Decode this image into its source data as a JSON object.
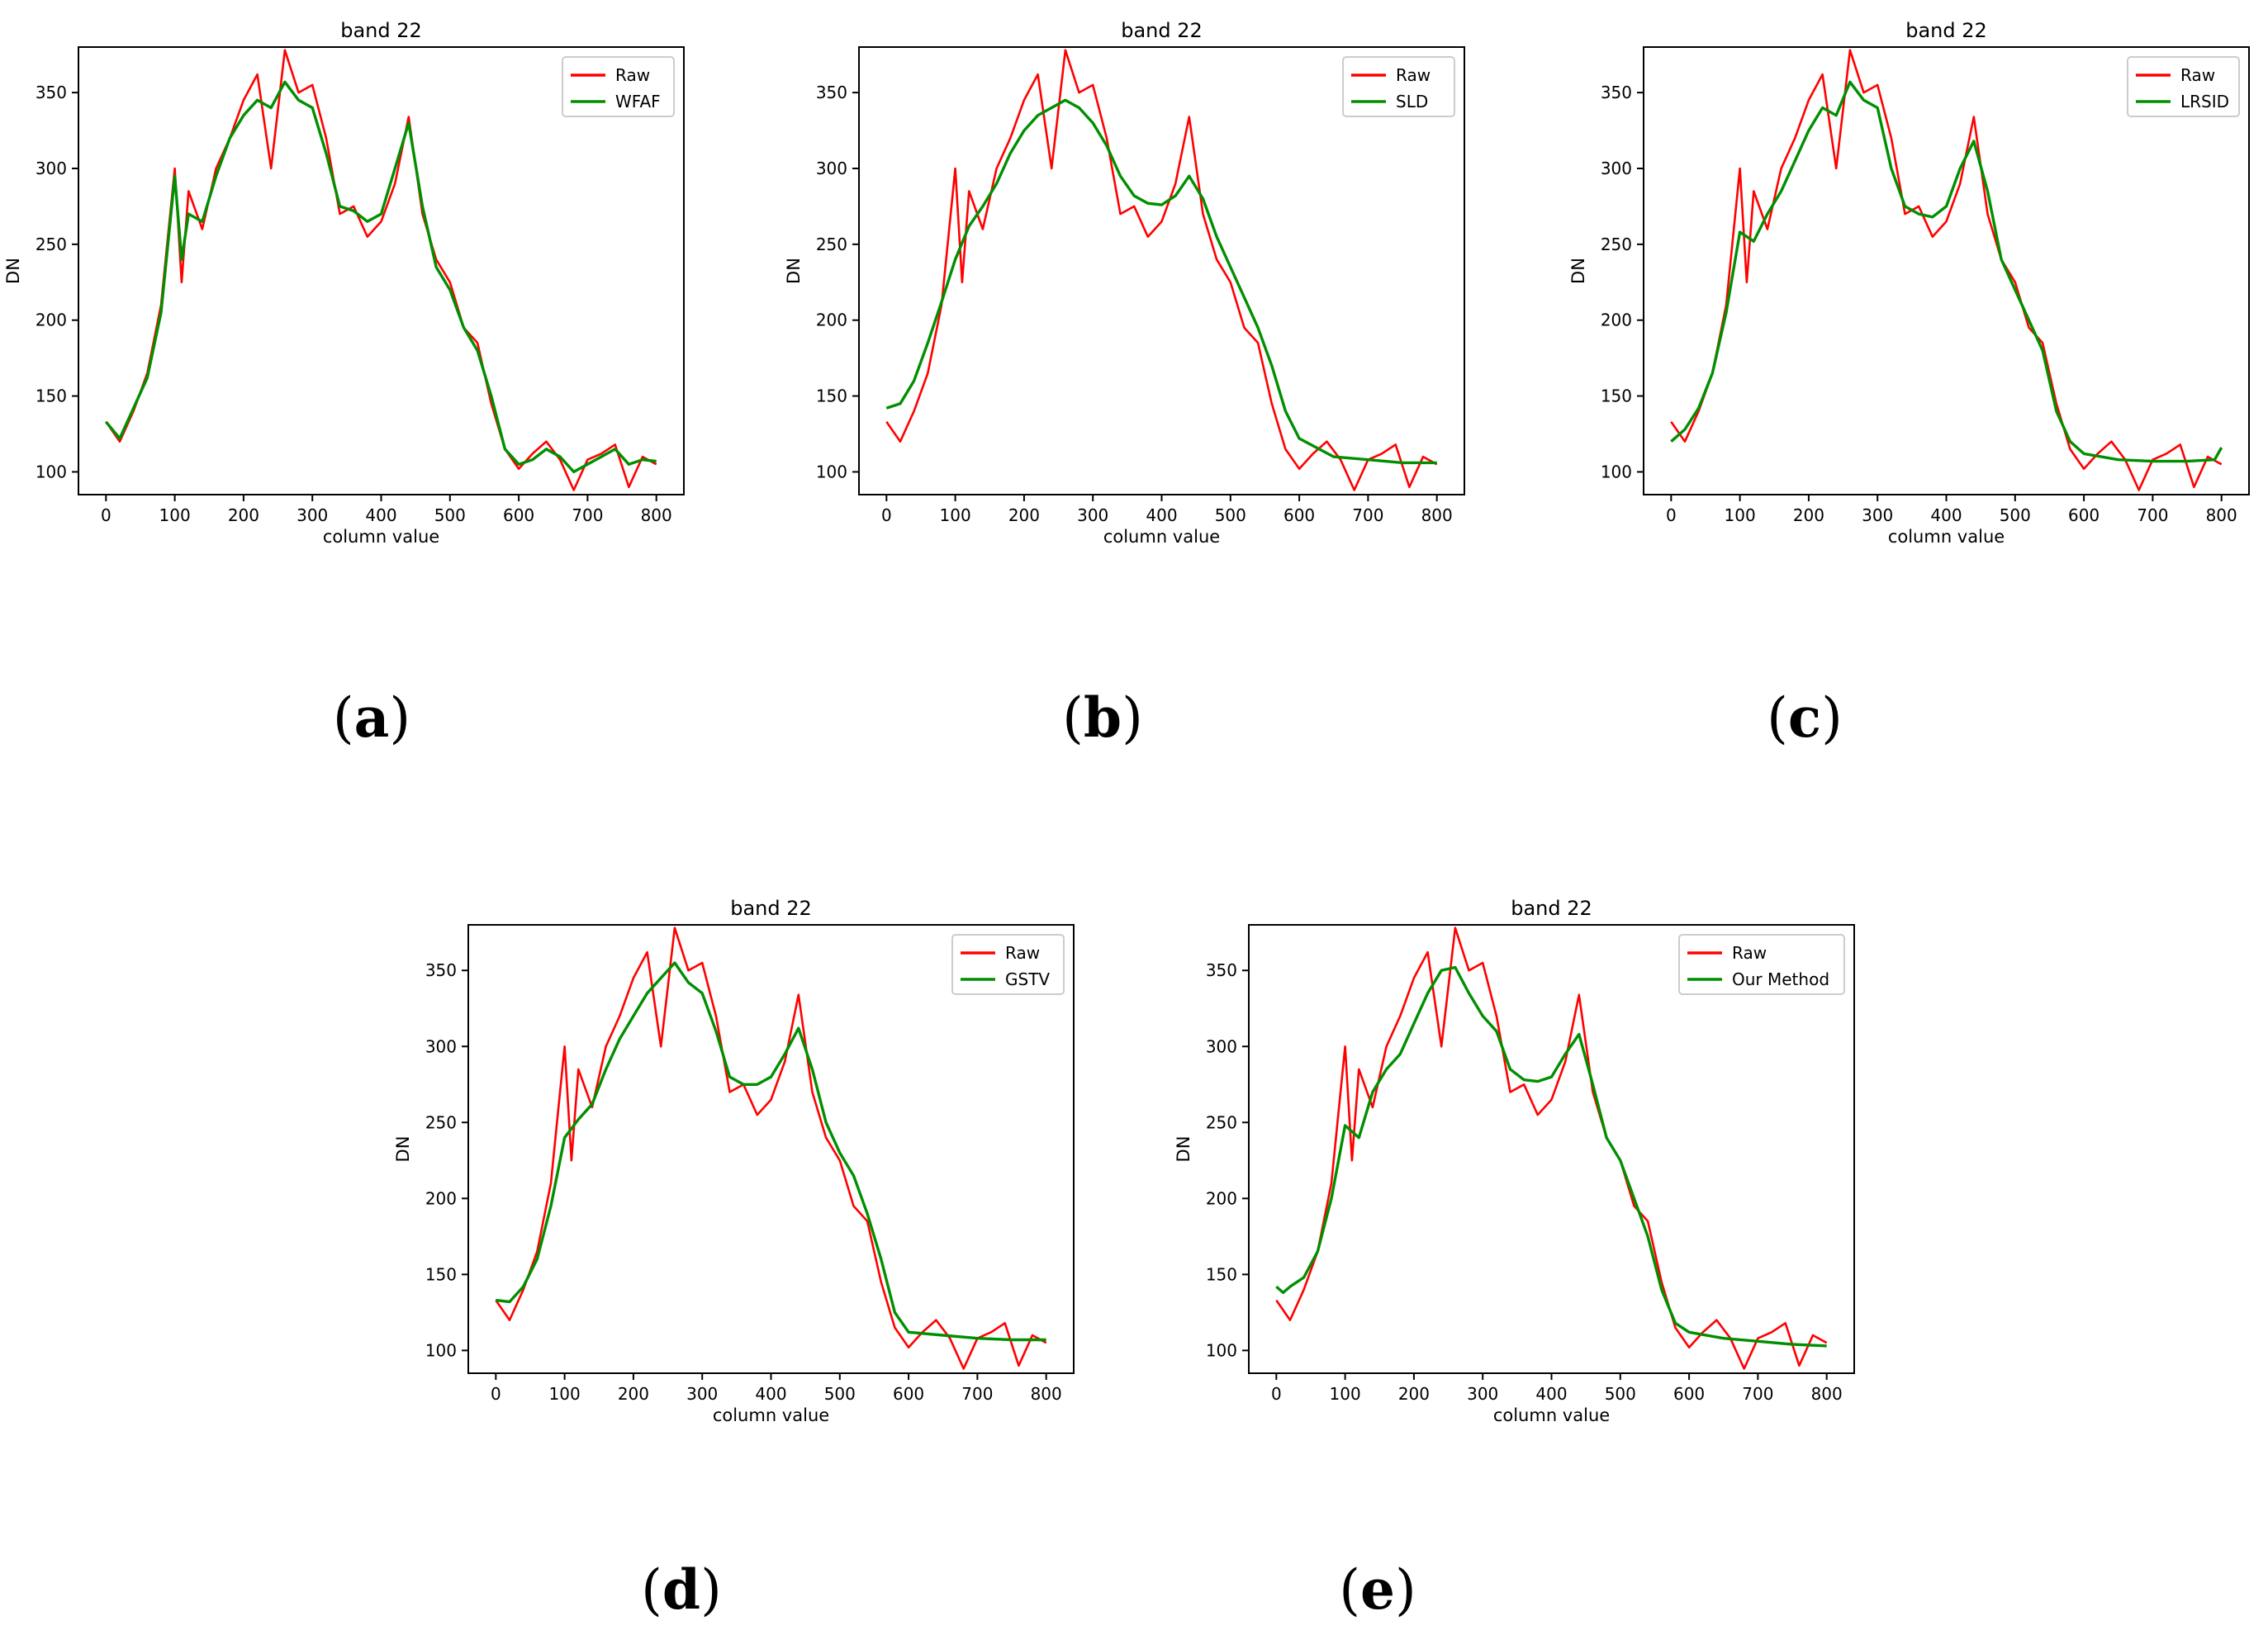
{
  "figure": {
    "panel_labels": [
      "(a)",
      "(b)",
      "(c)",
      "(d)",
      "(e)"
    ]
  },
  "colors": {
    "raw": "#ff0000",
    "fit": "#008f00",
    "axis": "#000000",
    "legend_border": "#cccccc"
  },
  "chart_data": [
    {
      "type": "line",
      "title": "band 22",
      "xlabel": "column value",
      "ylabel": "DN",
      "xlim": [
        -40,
        840
      ],
      "ylim": [
        85,
        380
      ],
      "xticks": [
        0,
        100,
        200,
        300,
        400,
        500,
        600,
        700,
        800
      ],
      "yticks": [
        100,
        150,
        200,
        250,
        300,
        350
      ],
      "legend_position": "top-right",
      "series": [
        {
          "name": "Raw",
          "color": "#ff0000",
          "x": [
            0,
            20,
            40,
            60,
            80,
            100,
            110,
            120,
            140,
            160,
            180,
            200,
            220,
            240,
            260,
            280,
            300,
            320,
            340,
            360,
            380,
            400,
            420,
            440,
            460,
            480,
            500,
            520,
            540,
            560,
            580,
            600,
            620,
            640,
            660,
            680,
            700,
            720,
            740,
            760,
            780,
            800
          ],
          "y": [
            133,
            120,
            140,
            165,
            210,
            300,
            225,
            285,
            260,
            300,
            320,
            345,
            362,
            300,
            378,
            350,
            355,
            320,
            270,
            275,
            255,
            265,
            290,
            334,
            270,
            240,
            225,
            195,
            185,
            145,
            115,
            102,
            112,
            120,
            108,
            88,
            108,
            112,
            118,
            90,
            110,
            105
          ]
        },
        {
          "name": "WFAF",
          "color": "#008f00",
          "x": [
            0,
            20,
            40,
            60,
            80,
            100,
            110,
            120,
            140,
            160,
            180,
            200,
            220,
            240,
            260,
            280,
            300,
            320,
            340,
            360,
            380,
            400,
            420,
            440,
            460,
            480,
            500,
            520,
            540,
            560,
            580,
            600,
            620,
            640,
            660,
            680,
            700,
            720,
            740,
            760,
            780,
            800
          ],
          "y": [
            133,
            122,
            142,
            162,
            205,
            295,
            240,
            270,
            265,
            295,
            320,
            335,
            345,
            340,
            357,
            345,
            340,
            310,
            275,
            272,
            265,
            270,
            300,
            330,
            275,
            235,
            220,
            195,
            180,
            150,
            115,
            105,
            108,
            115,
            110,
            100,
            105,
            110,
            115,
            105,
            108,
            107
          ]
        }
      ]
    },
    {
      "type": "line",
      "title": "band 22",
      "xlabel": "column value",
      "ylabel": "DN",
      "xlim": [
        -40,
        840
      ],
      "ylim": [
        85,
        380
      ],
      "xticks": [
        0,
        100,
        200,
        300,
        400,
        500,
        600,
        700,
        800
      ],
      "yticks": [
        100,
        150,
        200,
        250,
        300,
        350
      ],
      "legend_position": "top-right",
      "series": [
        {
          "name": "Raw",
          "color": "#ff0000",
          "x": [
            0,
            20,
            40,
            60,
            80,
            100,
            110,
            120,
            140,
            160,
            180,
            200,
            220,
            240,
            260,
            280,
            300,
            320,
            340,
            360,
            380,
            400,
            420,
            440,
            460,
            480,
            500,
            520,
            540,
            560,
            580,
            600,
            620,
            640,
            660,
            680,
            700,
            720,
            740,
            760,
            780,
            800
          ],
          "y": [
            133,
            120,
            140,
            165,
            210,
            300,
            225,
            285,
            260,
            300,
            320,
            345,
            362,
            300,
            378,
            350,
            355,
            320,
            270,
            275,
            255,
            265,
            290,
            334,
            270,
            240,
            225,
            195,
            185,
            145,
            115,
            102,
            112,
            120,
            108,
            88,
            108,
            112,
            118,
            90,
            110,
            105
          ]
        },
        {
          "name": "SLD",
          "color": "#008f00",
          "x": [
            0,
            20,
            40,
            60,
            80,
            100,
            120,
            140,
            160,
            180,
            200,
            220,
            240,
            260,
            280,
            300,
            320,
            340,
            360,
            380,
            400,
            420,
            440,
            460,
            480,
            500,
            520,
            540,
            560,
            580,
            600,
            650,
            700,
            750,
            800
          ],
          "y": [
            142,
            145,
            160,
            185,
            212,
            240,
            262,
            275,
            290,
            310,
            325,
            335,
            340,
            345,
            340,
            330,
            315,
            295,
            282,
            277,
            276,
            282,
            295,
            280,
            255,
            235,
            215,
            195,
            170,
            140,
            122,
            110,
            108,
            106,
            106
          ]
        }
      ]
    },
    {
      "type": "line",
      "title": "band 22",
      "xlabel": "column value",
      "ylabel": "DN",
      "xlim": [
        -40,
        840
      ],
      "ylim": [
        85,
        380
      ],
      "xticks": [
        0,
        100,
        200,
        300,
        400,
        500,
        600,
        700,
        800
      ],
      "yticks": [
        100,
        150,
        200,
        250,
        300,
        350
      ],
      "legend_position": "top-right",
      "series": [
        {
          "name": "Raw",
          "color": "#ff0000",
          "x": [
            0,
            20,
            40,
            60,
            80,
            100,
            110,
            120,
            140,
            160,
            180,
            200,
            220,
            240,
            260,
            280,
            300,
            320,
            340,
            360,
            380,
            400,
            420,
            440,
            460,
            480,
            500,
            520,
            540,
            560,
            580,
            600,
            620,
            640,
            660,
            680,
            700,
            720,
            740,
            760,
            780,
            800
          ],
          "y": [
            133,
            120,
            140,
            165,
            210,
            300,
            225,
            285,
            260,
            300,
            320,
            345,
            362,
            300,
            378,
            350,
            355,
            320,
            270,
            275,
            255,
            265,
            290,
            334,
            270,
            240,
            225,
            195,
            185,
            145,
            115,
            102,
            112,
            120,
            108,
            88,
            108,
            112,
            118,
            90,
            110,
            105
          ]
        },
        {
          "name": "LRSID",
          "color": "#008f00",
          "x": [
            0,
            20,
            40,
            60,
            80,
            100,
            120,
            140,
            160,
            180,
            200,
            220,
            240,
            260,
            280,
            300,
            320,
            340,
            360,
            380,
            400,
            420,
            440,
            460,
            480,
            500,
            520,
            540,
            560,
            580,
            600,
            650,
            700,
            750,
            790,
            800
          ],
          "y": [
            120,
            128,
            142,
            165,
            205,
            258,
            252,
            270,
            285,
            305,
            325,
            340,
            335,
            357,
            345,
            340,
            300,
            275,
            270,
            268,
            275,
            300,
            318,
            285,
            240,
            220,
            200,
            180,
            140,
            120,
            112,
            108,
            107,
            107,
            108,
            116
          ]
        }
      ]
    },
    {
      "type": "line",
      "title": "band 22",
      "xlabel": "column value",
      "ylabel": "DN",
      "xlim": [
        -40,
        840
      ],
      "ylim": [
        85,
        380
      ],
      "xticks": [
        0,
        100,
        200,
        300,
        400,
        500,
        600,
        700,
        800
      ],
      "yticks": [
        100,
        150,
        200,
        250,
        300,
        350
      ],
      "legend_position": "top-right",
      "series": [
        {
          "name": "Raw",
          "color": "#ff0000",
          "x": [
            0,
            20,
            40,
            60,
            80,
            100,
            110,
            120,
            140,
            160,
            180,
            200,
            220,
            240,
            260,
            280,
            300,
            320,
            340,
            360,
            380,
            400,
            420,
            440,
            460,
            480,
            500,
            520,
            540,
            560,
            580,
            600,
            620,
            640,
            660,
            680,
            700,
            720,
            740,
            760,
            780,
            800
          ],
          "y": [
            133,
            120,
            140,
            165,
            210,
            300,
            225,
            285,
            260,
            300,
            320,
            345,
            362,
            300,
            378,
            350,
            355,
            320,
            270,
            275,
            255,
            265,
            290,
            334,
            270,
            240,
            225,
            195,
            185,
            145,
            115,
            102,
            112,
            120,
            108,
            88,
            108,
            112,
            118,
            90,
            110,
            105
          ]
        },
        {
          "name": "GSTV",
          "color": "#008f00",
          "x": [
            0,
            20,
            40,
            60,
            80,
            100,
            120,
            140,
            160,
            180,
            200,
            220,
            240,
            260,
            280,
            300,
            320,
            340,
            360,
            380,
            400,
            420,
            440,
            460,
            480,
            500,
            520,
            540,
            560,
            580,
            600,
            650,
            700,
            750,
            800
          ],
          "y": [
            133,
            132,
            142,
            160,
            195,
            240,
            252,
            262,
            285,
            305,
            320,
            335,
            345,
            355,
            342,
            335,
            310,
            280,
            275,
            275,
            280,
            295,
            312,
            285,
            250,
            230,
            215,
            190,
            160,
            125,
            112,
            110,
            108,
            107,
            107
          ]
        }
      ]
    },
    {
      "type": "line",
      "title": "band 22",
      "xlabel": "column value",
      "ylabel": "DN",
      "xlim": [
        -40,
        840
      ],
      "ylim": [
        85,
        380
      ],
      "xticks": [
        0,
        100,
        200,
        300,
        400,
        500,
        600,
        700,
        800
      ],
      "yticks": [
        100,
        150,
        200,
        250,
        300,
        350
      ],
      "legend_position": "top-right",
      "series": [
        {
          "name": "Raw",
          "color": "#ff0000",
          "x": [
            0,
            20,
            40,
            60,
            80,
            100,
            110,
            120,
            140,
            160,
            180,
            200,
            220,
            240,
            260,
            280,
            300,
            320,
            340,
            360,
            380,
            400,
            420,
            440,
            460,
            480,
            500,
            520,
            540,
            560,
            580,
            600,
            620,
            640,
            660,
            680,
            700,
            720,
            740,
            760,
            780,
            800
          ],
          "y": [
            133,
            120,
            140,
            165,
            210,
            300,
            225,
            285,
            260,
            300,
            320,
            345,
            362,
            300,
            378,
            350,
            355,
            320,
            270,
            275,
            255,
            265,
            290,
            334,
            270,
            240,
            225,
            195,
            185,
            145,
            115,
            102,
            112,
            120,
            108,
            88,
            108,
            112,
            118,
            90,
            110,
            105
          ]
        },
        {
          "name": "Our Method",
          "color": "#008f00",
          "x": [
            0,
            10,
            20,
            40,
            60,
            80,
            100,
            120,
            140,
            160,
            180,
            200,
            220,
            240,
            260,
            280,
            300,
            320,
            340,
            360,
            380,
            400,
            420,
            440,
            460,
            480,
            500,
            520,
            540,
            560,
            580,
            600,
            650,
            700,
            750,
            800
          ],
          "y": [
            142,
            138,
            142,
            148,
            165,
            200,
            248,
            240,
            270,
            285,
            295,
            315,
            335,
            350,
            352,
            335,
            320,
            310,
            285,
            278,
            277,
            280,
            295,
            308,
            275,
            240,
            225,
            200,
            175,
            140,
            118,
            112,
            108,
            106,
            104,
            103
          ]
        }
      ]
    }
  ]
}
